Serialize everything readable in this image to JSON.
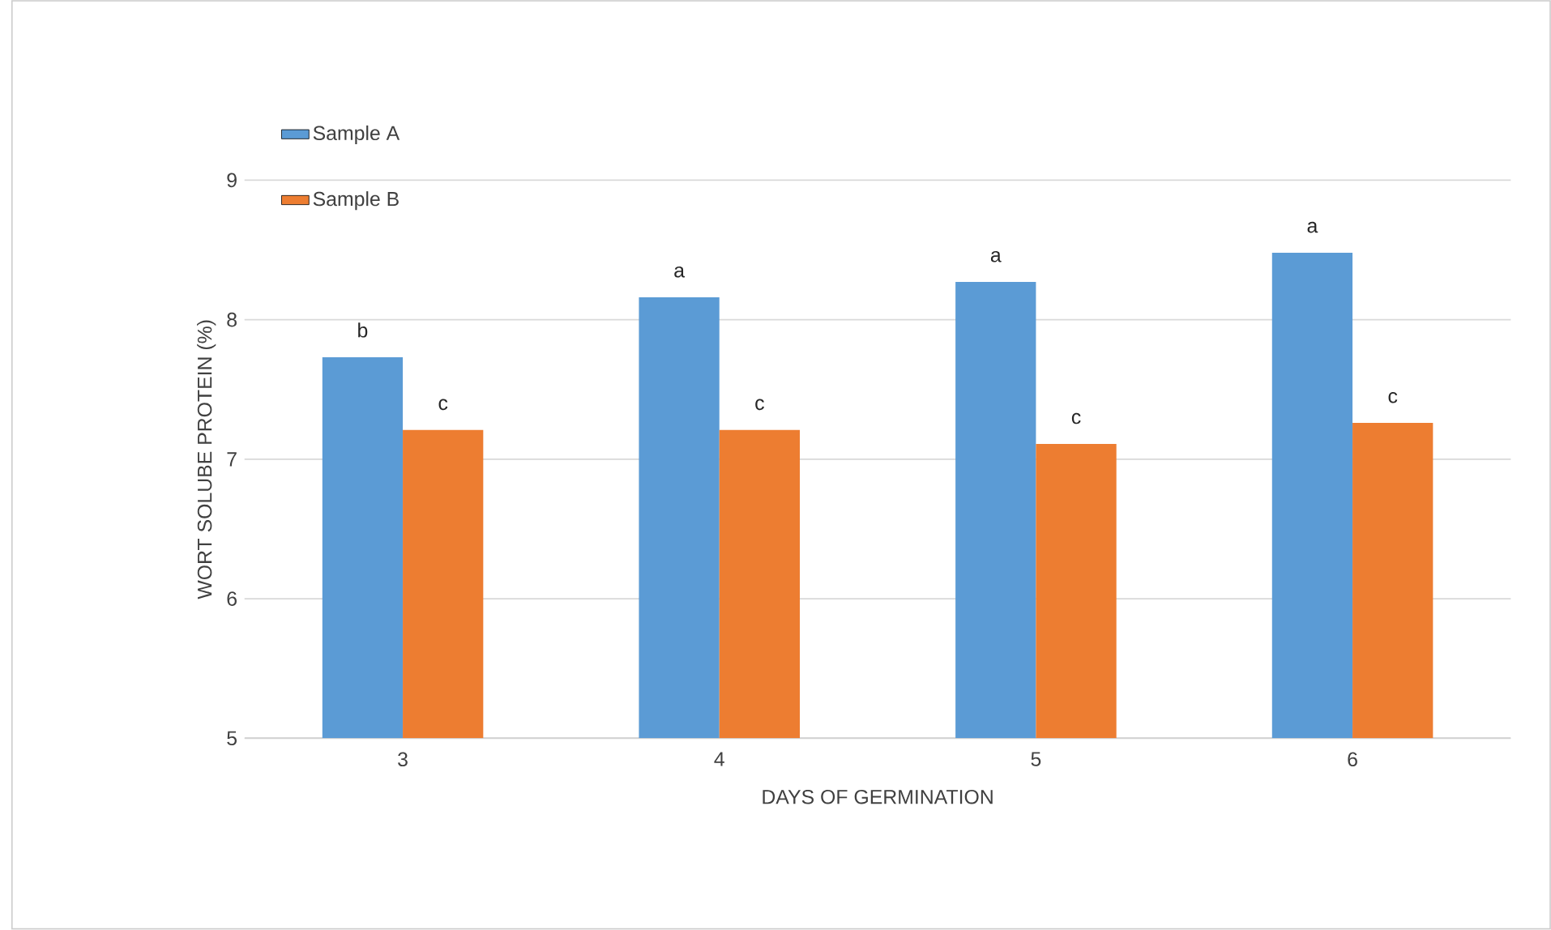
{
  "chart_data": {
    "type": "bar",
    "xlabel": "DAYS OF GERMINATION",
    "ylabel": "WORT SOLUBE PROTEIN (%)",
    "categories": [
      "3",
      "4",
      "5",
      "6"
    ],
    "series": [
      {
        "name": "Sample A",
        "color": "#5b9bd5",
        "values": [
          7.73,
          8.16,
          8.27,
          8.48
        ]
      },
      {
        "name": "Sample B",
        "color": "#ed7d31",
        "values": [
          7.21,
          7.21,
          7.11,
          7.26
        ]
      }
    ],
    "ylim": [
      5,
      9
    ],
    "yticks": [
      5,
      6,
      7,
      8,
      9
    ],
    "grid": "y",
    "legend": "top left",
    "annotations": [
      {
        "text": "b",
        "x": "3",
        "y": 7.73
      },
      {
        "text": "c",
        "x": "3",
        "y": 7.21
      },
      {
        "text": "a",
        "x": "4",
        "y": 8.16
      },
      {
        "text": "c",
        "x": "4",
        "y": 7.21
      },
      {
        "text": "a",
        "x": "5",
        "y": 8.27
      },
      {
        "text": "c",
        "x": "5",
        "y": 7.11
      },
      {
        "text": "a",
        "x": "6",
        "y": 8.48
      },
      {
        "text": "c",
        "x": "6",
        "y": 7.26
      }
    ]
  }
}
